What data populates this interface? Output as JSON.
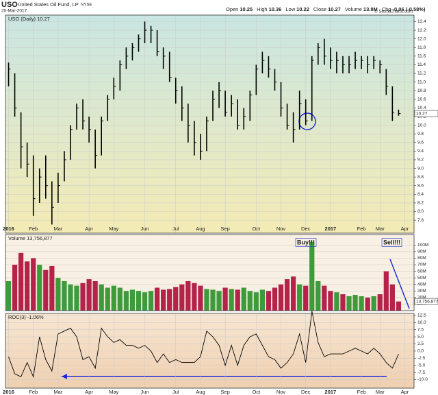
{
  "header": {
    "symbol": "USO",
    "name": "United States Oil Fund, LP",
    "exchange": "NYSE",
    "date": "20-Mar-2017",
    "quote": [
      [
        "Open",
        "10.25"
      ],
      [
        "High",
        "10.36"
      ],
      [
        "Low",
        "10.22"
      ],
      [
        "Close",
        "10.27"
      ],
      [
        "Volume",
        "13.8M"
      ],
      [
        "Chg",
        "-0.06 (-0.58%)"
      ]
    ],
    "credit": "© StockCharts.com"
  },
  "chart_data": [
    {
      "type": "hlc",
      "legend": "USO (Daily) 10.27",
      "last_label": "10.27",
      "color": "#000000",
      "categories": [
        "2016",
        null,
        null,
        null,
        "Feb",
        null,
        null,
        null,
        "Mar",
        null,
        null,
        null,
        null,
        "Apr",
        null,
        null,
        null,
        "May",
        null,
        null,
        null,
        null,
        "Jun",
        null,
        null,
        null,
        null,
        "Jul",
        null,
        null,
        null,
        "Aug",
        null,
        null,
        null,
        "Sep",
        null,
        null,
        null,
        null,
        "Oct",
        null,
        null,
        null,
        "Nov",
        null,
        null,
        null,
        "Dec",
        null,
        null,
        null,
        "2017",
        null,
        null,
        null,
        null,
        "Feb",
        null,
        null,
        "Mar",
        null,
        null,
        null,
        "Apr",
        null
      ],
      "high": [
        11.45,
        11.2,
        10.3,
        9.6,
        9.3,
        9.0,
        9.3,
        8.7,
        8.9,
        9.4,
        10.0,
        10.5,
        10.6,
        10.2,
        9.9,
        10.2,
        10.7,
        11.1,
        11.5,
        11.8,
        11.9,
        12.1,
        12.4,
        12.3,
        12.2,
        11.8,
        11.7,
        11.1,
        10.9,
        10.5,
        10.1,
        9.8,
        10.2,
        10.8,
        11.0,
        10.8,
        10.7,
        10.6,
        10.4,
        10.8,
        11.4,
        11.7,
        11.6,
        11.3,
        11.0,
        10.5,
        10.3,
        10.8,
        10.6,
        11.6,
        11.9,
        12.0,
        11.8,
        11.7,
        11.6,
        11.6,
        11.7,
        11.6,
        11.6,
        11.6,
        11.5,
        11.3,
        10.9,
        10.36,
        null,
        null
      ],
      "low": [
        10.9,
        10.2,
        9.0,
        8.8,
        7.9,
        8.2,
        8.3,
        7.7,
        8.2,
        8.7,
        9.2,
        9.9,
        9.9,
        9.6,
        9.0,
        9.3,
        10.1,
        10.6,
        10.8,
        11.3,
        11.5,
        11.7,
        11.9,
        11.9,
        11.6,
        11.3,
        11.0,
        10.5,
        10.1,
        9.6,
        9.3,
        9.2,
        9.4,
        10.1,
        10.4,
        10.2,
        10.2,
        9.9,
        9.9,
        10.1,
        10.7,
        11.2,
        11.1,
        10.8,
        10.2,
        9.9,
        9.6,
        9.9,
        10.0,
        10.1,
        11.4,
        11.4,
        11.3,
        11.2,
        11.2,
        11.2,
        11.3,
        11.3,
        11.2,
        11.3,
        11.2,
        10.7,
        10.1,
        10.22,
        null,
        null
      ],
      "close": [
        11.3,
        10.4,
        9.5,
        9.1,
        8.3,
        8.8,
        8.6,
        8.1,
        8.6,
        9.2,
        9.9,
        10.4,
        10.1,
        9.9,
        9.3,
        10.1,
        10.6,
        10.9,
        11.4,
        11.6,
        11.8,
        12.0,
        12.2,
        12.2,
        11.7,
        11.6,
        11.1,
        10.8,
        10.4,
        10.0,
        9.6,
        9.4,
        10.1,
        10.6,
        10.8,
        10.3,
        10.5,
        10.0,
        10.2,
        10.7,
        11.3,
        11.5,
        11.3,
        11.0,
        10.4,
        10.0,
        9.9,
        10.5,
        10.1,
        11.5,
        11.8,
        11.6,
        11.5,
        11.5,
        11.4,
        11.4,
        11.5,
        11.5,
        11.4,
        11.5,
        11.4,
        10.9,
        10.3,
        10.27,
        null,
        null
      ],
      "ylim": [
        7.5,
        12.55
      ],
      "yticks": [
        7.8,
        {
          "value": 8.0,
          "label": "8.0"
        },
        8.2,
        8.4,
        8.6,
        8.8,
        {
          "value": 9.0,
          "label": "9.0"
        },
        9.2,
        9.4,
        9.6,
        9.8,
        {
          "value": 10.0,
          "label": "10.0"
        },
        10.2,
        10.4,
        10.6,
        10.8,
        {
          "value": 11.0,
          "label": "11.0"
        },
        11.2,
        11.4,
        11.6,
        11.8,
        {
          "value": 12.0,
          "label": "12.0"
        },
        12.2,
        12.4
      ],
      "grid": true
    },
    {
      "type": "bar",
      "legend": "Volume 13,756,877",
      "last_label": "13,756,877",
      "up_color": "#3f9a3c",
      "down_color": "#b5234b",
      "annotations": [
        "Buy!!!",
        "Sell!!!"
      ],
      "values": [
        45,
        70,
        88,
        75,
        80,
        70,
        62,
        68,
        50,
        45,
        40,
        38,
        42,
        48,
        45,
        40,
        35,
        38,
        35,
        30,
        32,
        30,
        28,
        30,
        35,
        32,
        33,
        36,
        40,
        45,
        42,
        38,
        33,
        32,
        30,
        35,
        33,
        32,
        35,
        30,
        28,
        32,
        30,
        35,
        40,
        48,
        52,
        40,
        38,
        105,
        45,
        38,
        30,
        28,
        25,
        22,
        24,
        22,
        20,
        22,
        25,
        60,
        40,
        14,
        null,
        null
      ],
      "ylim": [
        0,
        116
      ],
      "yticks": [
        {
          "value": 10,
          "label": "10M"
        },
        {
          "value": 20,
          "label": "20M"
        },
        {
          "value": 30,
          "label": "30M"
        },
        {
          "value": 40,
          "label": "40M"
        },
        {
          "value": 50,
          "label": "50M"
        },
        {
          "value": 60,
          "label": "60M"
        },
        {
          "value": 70,
          "label": "70M"
        },
        {
          "value": 80,
          "label": "80M"
        },
        {
          "value": 90,
          "label": "90M"
        },
        {
          "value": 100,
          "label": "100M"
        }
      ],
      "grid": true
    },
    {
      "type": "line",
      "legend": "ROC(3) -1.06%",
      "color": "#000000",
      "categories": [
        "2016",
        null,
        null,
        null,
        "Feb",
        null,
        null,
        null,
        "Mar",
        null,
        null,
        null,
        null,
        "Apr",
        null,
        null,
        null,
        "May",
        null,
        null,
        null,
        null,
        "Jun",
        null,
        null,
        null,
        null,
        "Jul",
        null,
        null,
        null,
        "Aug",
        null,
        null,
        null,
        "Sep",
        null,
        null,
        null,
        null,
        "Oct",
        null,
        null,
        null,
        "Nov",
        null,
        null,
        null,
        "Dec",
        null,
        null,
        null,
        "2017",
        null,
        null,
        null,
        null,
        "Feb",
        null,
        null,
        "Mar",
        null,
        null,
        null,
        "Apr",
        null
      ],
      "values": [
        -2,
        -8,
        -9,
        -4,
        -9,
        5,
        -3,
        -7,
        6,
        7,
        8,
        5,
        -3,
        -2,
        -6,
        8,
        5,
        3,
        4,
        2,
        2,
        1,
        2,
        0,
        -4,
        -1,
        -4,
        -3,
        -4,
        -4,
        -4,
        -2,
        7,
        5,
        2,
        -5,
        2,
        -5,
        2,
        5,
        6,
        2,
        -2,
        -3,
        -6,
        -4,
        -1,
        6,
        -4,
        14,
        3,
        -2,
        -1,
        -1,
        -1,
        0,
        1,
        0,
        -1,
        1,
        -1,
        -4,
        -6,
        -1.06,
        null,
        null
      ],
      "ylim": [
        -13,
        13.2
      ],
      "yticks": [
        12.5,
        {
          "value": 10.0,
          "label": "10.0"
        },
        7.5,
        {
          "value": 5.0,
          "label": "5.0"
        },
        2.5,
        {
          "value": 0.0,
          "label": "0.0"
        },
        -2.5,
        {
          "value": -5.0,
          "label": "-5.0"
        },
        -7.5,
        {
          "value": -10.0,
          "label": "-10.0"
        }
      ],
      "grid": true
    }
  ]
}
